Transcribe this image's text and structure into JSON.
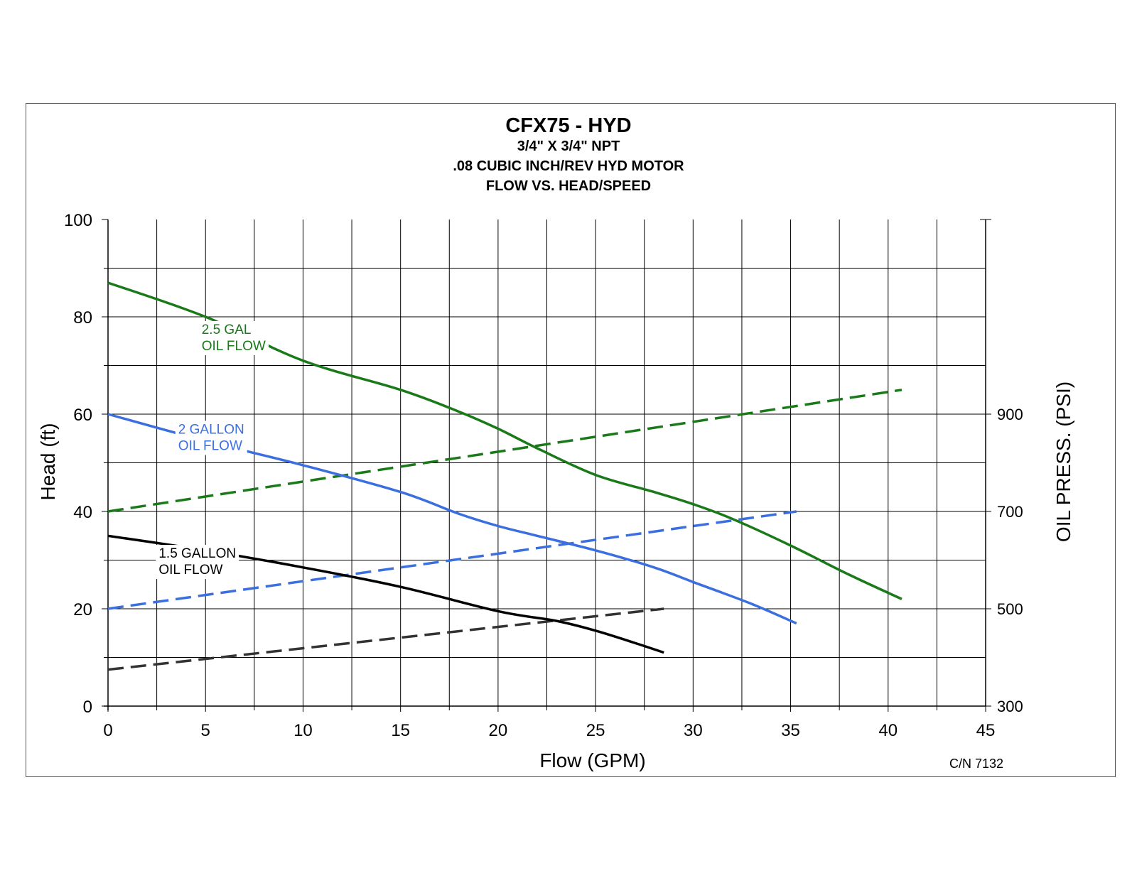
{
  "chart_data": {
    "type": "line",
    "title": "CFX75 - HYD",
    "subtitle": [
      "3/4\" X 3/4\" NPT",
      ".08 CUBIC INCH/REV HYD MOTOR",
      "FLOW VS. HEAD/SPEED"
    ],
    "xlabel": "Flow (GPM)",
    "ylabel": "Head (ft)",
    "y2label": "OIL PRESS. (PSI)",
    "xlim": [
      0,
      45
    ],
    "ylim": [
      0,
      100
    ],
    "y2lim": [
      300,
      1300
    ],
    "x_ticks": [
      "0",
      "5",
      "10",
      "15",
      "20",
      "25",
      "30",
      "35",
      "40",
      "45"
    ],
    "y_ticks": [
      "0",
      "20",
      "40",
      "60",
      "80",
      "100"
    ],
    "y2_ticks": [
      {
        "value": 300,
        "label": "300"
      },
      {
        "value": 500,
        "label": "500"
      },
      {
        "value": 700,
        "label": "700"
      },
      {
        "value": 900,
        "label": "900"
      }
    ],
    "grid": true,
    "note": "C/N 7132",
    "series": [
      {
        "name": "2.5 GAL OIL FLOW",
        "axis": "head",
        "style": "solid",
        "color": "#1a7a1a",
        "x": [
          0,
          5,
          10,
          15,
          18,
          20,
          22,
          25,
          28,
          30,
          32,
          35,
          38,
          40.7
        ],
        "y": [
          87,
          80,
          71,
          65,
          60.5,
          57,
          53,
          47.5,
          44,
          41.5,
          38.5,
          33,
          27,
          22
        ]
      },
      {
        "name": "2.5 GAL OIL FLOW",
        "axis": "oil_pressure",
        "style": "dashed",
        "color": "#1a7a1a",
        "x": [
          0,
          40.7
        ],
        "y": [
          700,
          950
        ]
      },
      {
        "name": "2 GALLON OIL FLOW",
        "axis": "head",
        "style": "solid",
        "color": "#3b6fe0",
        "x": [
          0,
          5,
          10,
          15,
          18,
          20,
          22,
          25,
          28,
          30,
          33,
          35.3
        ],
        "y": [
          60,
          54.5,
          49.5,
          44,
          39.5,
          37,
          35,
          32,
          28.5,
          25.5,
          21,
          17
        ]
      },
      {
        "name": "2 GALLON OIL FLOW",
        "axis": "oil_pressure",
        "style": "dashed",
        "color": "#3b6fe0",
        "x": [
          0,
          35.3
        ],
        "y": [
          500,
          700
        ]
      },
      {
        "name": "1.5 GALLON OIL FLOW",
        "axis": "head",
        "style": "solid",
        "color": "#000000",
        "x": [
          0,
          5,
          10,
          15,
          20,
          23,
          25,
          27,
          28.5
        ],
        "y": [
          35,
          32,
          28.5,
          24.5,
          19.5,
          17.5,
          15.5,
          13,
          11
        ]
      },
      {
        "name": "1.5 GALLON OIL FLOW",
        "axis": "oil_pressure",
        "style": "dashed",
        "color": "#333333",
        "x": [
          0,
          28.5
        ],
        "y": [
          375,
          500
        ]
      }
    ],
    "annotations": [
      {
        "lines": [
          "2.5 GAL",
          "OIL FLOW"
        ],
        "color": "#1a7a1a",
        "at_flow": 4.8,
        "at_head": 76.5
      },
      {
        "lines": [
          "2 GALLON",
          "OIL FLOW"
        ],
        "color": "#3b6fe0",
        "at_flow": 3.6,
        "at_head": 56
      },
      {
        "lines": [
          "1.5 GALLON",
          "OIL FLOW"
        ],
        "color": "#000000",
        "at_flow": 2.6,
        "at_head": 30.5
      }
    ]
  }
}
